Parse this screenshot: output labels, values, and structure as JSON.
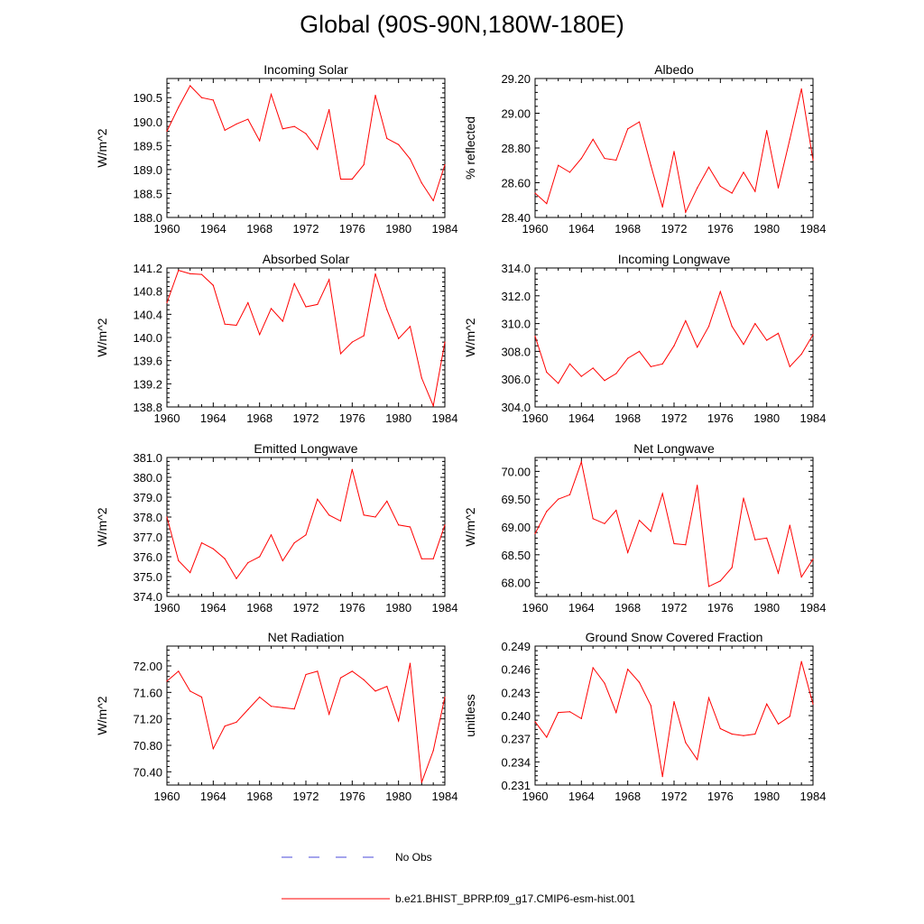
{
  "title": "Global (90S-90N,180W-180E)",
  "colors": {
    "model_line": "#ff0000",
    "obs_line": "#4a4ad8",
    "axis": "#000000"
  },
  "legend": {
    "obs_label": "No Obs",
    "model_label": "b.e21.BHIST_BPRP.f09_g17.CMIP6-esm-hist.001"
  },
  "chart_data": [
    {
      "type": "line",
      "title": "Incoming Solar",
      "xlabel": "",
      "ylabel": "W/m^2",
      "xlim": [
        1960,
        1984
      ],
      "ylim": [
        188.0,
        190.9
      ],
      "xticks": [
        "1960",
        "1964",
        "1968",
        "1972",
        "1976",
        "1980",
        "1984"
      ],
      "yticks": [
        "188.0",
        "188.5",
        "189.0",
        "189.5",
        "190.0",
        "190.5"
      ],
      "x": [
        1960,
        1961,
        1962,
        1963,
        1964,
        1965,
        1966,
        1967,
        1968,
        1969,
        1970,
        1971,
        1972,
        1973,
        1974,
        1975,
        1976,
        1977,
        1978,
        1979,
        1980,
        1981,
        1982,
        1983,
        1984
      ],
      "series": [
        {
          "name": "b.e21.BHIST_BPRP.f09_g17.CMIP6-esm-hist.001",
          "values": [
            189.8,
            190.3,
            190.75,
            190.5,
            190.45,
            189.82,
            189.95,
            190.05,
            189.6,
            190.57,
            189.85,
            189.9,
            189.75,
            189.42,
            190.25,
            188.8,
            188.8,
            189.1,
            190.55,
            189.65,
            189.52,
            189.22,
            188.72,
            188.35,
            189.1
          ]
        }
      ]
    },
    {
      "type": "line",
      "title": "Albedo",
      "xlabel": "",
      "ylabel": "% reflected",
      "xlim": [
        1960,
        1984
      ],
      "ylim": [
        28.4,
        29.2
      ],
      "xticks": [
        "1960",
        "1964",
        "1968",
        "1972",
        "1976",
        "1980",
        "1984"
      ],
      "yticks": [
        "28.40",
        "28.60",
        "28.80",
        "29.00",
        "29.20"
      ],
      "x": [
        1960,
        1961,
        1962,
        1963,
        1964,
        1965,
        1966,
        1967,
        1968,
        1969,
        1970,
        1971,
        1972,
        1973,
        1974,
        1975,
        1976,
        1977,
        1978,
        1979,
        1980,
        1981,
        1982,
        1983,
        1984
      ],
      "series": [
        {
          "name": "b.e21.BHIST_BPRP.f09_g17.CMIP6-esm-hist.001",
          "values": [
            28.54,
            28.48,
            28.7,
            28.66,
            28.74,
            28.85,
            28.74,
            28.73,
            28.91,
            28.95,
            28.7,
            28.46,
            28.78,
            28.43,
            28.57,
            28.69,
            28.58,
            28.54,
            28.66,
            28.55,
            28.9,
            28.57,
            28.85,
            29.14,
            28.73
          ]
        }
      ]
    },
    {
      "type": "line",
      "title": "Absorbed Solar",
      "xlabel": "",
      "ylabel": "W/m^2",
      "xlim": [
        1960,
        1984
      ],
      "ylim": [
        138.8,
        141.2
      ],
      "xticks": [
        "1960",
        "1964",
        "1968",
        "1972",
        "1976",
        "1980",
        "1984"
      ],
      "yticks": [
        "138.8",
        "139.2",
        "139.6",
        "140.0",
        "140.4",
        "140.8",
        "141.2"
      ],
      "x": [
        1960,
        1961,
        1962,
        1963,
        1964,
        1965,
        1966,
        1967,
        1968,
        1969,
        1970,
        1971,
        1972,
        1973,
        1974,
        1975,
        1976,
        1977,
        1978,
        1979,
        1980,
        1981,
        1982,
        1983,
        1984
      ],
      "series": [
        {
          "name": "b.e21.BHIST_BPRP.f09_g17.CMIP6-esm-hist.001",
          "values": [
            140.6,
            141.16,
            141.1,
            141.09,
            140.9,
            140.23,
            140.21,
            140.6,
            140.05,
            140.5,
            140.28,
            140.93,
            140.53,
            140.57,
            141.0,
            139.72,
            139.92,
            140.03,
            141.1,
            140.48,
            139.98,
            140.19,
            139.3,
            138.82,
            139.92
          ]
        }
      ]
    },
    {
      "type": "line",
      "title": "Incoming Longwave",
      "xlabel": "",
      "ylabel": "W/m^2",
      "xlim": [
        1960,
        1984
      ],
      "ylim": [
        304.0,
        314.0
      ],
      "xticks": [
        "1960",
        "1964",
        "1968",
        "1972",
        "1976",
        "1980",
        "1984"
      ],
      "yticks": [
        "304.0",
        "306.0",
        "308.0",
        "310.0",
        "312.0",
        "314.0"
      ],
      "x": [
        1960,
        1961,
        1962,
        1963,
        1964,
        1965,
        1966,
        1967,
        1968,
        1969,
        1970,
        1971,
        1972,
        1973,
        1974,
        1975,
        1976,
        1977,
        1978,
        1979,
        1980,
        1981,
        1982,
        1983,
        1984
      ],
      "series": [
        {
          "name": "b.e21.BHIST_BPRP.f09_g17.CMIP6-esm-hist.001",
          "values": [
            309.1,
            306.5,
            305.7,
            307.1,
            306.2,
            306.8,
            305.9,
            306.4,
            307.5,
            308.0,
            306.9,
            307.1,
            308.4,
            310.2,
            308.3,
            309.8,
            312.3,
            309.8,
            308.5,
            310.0,
            308.8,
            309.3,
            306.9,
            307.8,
            309.2
          ]
        }
      ]
    },
    {
      "type": "line",
      "title": "Emitted Longwave",
      "xlabel": "",
      "ylabel": "W/m^2",
      "xlim": [
        1960,
        1984
      ],
      "ylim": [
        374.0,
        381.0
      ],
      "xticks": [
        "1960",
        "1964",
        "1968",
        "1972",
        "1976",
        "1980",
        "1984"
      ],
      "yticks": [
        "374.0",
        "375.0",
        "376.0",
        "377.0",
        "378.0",
        "379.0",
        "380.0",
        "381.0"
      ],
      "x": [
        1960,
        1961,
        1962,
        1963,
        1964,
        1965,
        1966,
        1967,
        1968,
        1969,
        1970,
        1971,
        1972,
        1973,
        1974,
        1975,
        1976,
        1977,
        1978,
        1979,
        1980,
        1981,
        1982,
        1983,
        1984
      ],
      "series": [
        {
          "name": "b.e21.BHIST_BPRP.f09_g17.CMIP6-esm-hist.001",
          "values": [
            378.0,
            375.8,
            375.2,
            376.7,
            376.4,
            375.9,
            374.9,
            375.7,
            376.0,
            377.1,
            375.8,
            376.7,
            377.1,
            378.9,
            378.1,
            377.8,
            380.4,
            378.1,
            378.0,
            378.8,
            377.6,
            377.5,
            375.9,
            375.9,
            377.6
          ]
        }
      ]
    },
    {
      "type": "line",
      "title": "Net Longwave",
      "xlabel": "",
      "ylabel": "W/m^2",
      "xlim": [
        1960,
        1984
      ],
      "ylim": [
        67.75,
        70.25
      ],
      "xticks": [
        "1960",
        "1964",
        "1968",
        "1972",
        "1976",
        "1980",
        "1984"
      ],
      "yticks": [
        "68.00",
        "68.50",
        "69.00",
        "69.50",
        "70.00"
      ],
      "x": [
        1960,
        1961,
        1962,
        1963,
        1964,
        1965,
        1966,
        1967,
        1968,
        1969,
        1970,
        1971,
        1972,
        1973,
        1974,
        1975,
        1976,
        1977,
        1978,
        1979,
        1980,
        1981,
        1982,
        1983,
        1984
      ],
      "series": [
        {
          "name": "b.e21.BHIST_BPRP.f09_g17.CMIP6-esm-hist.001",
          "values": [
            68.88,
            69.28,
            69.5,
            69.58,
            70.17,
            69.15,
            69.06,
            69.3,
            68.54,
            69.12,
            68.92,
            69.6,
            68.7,
            68.68,
            69.75,
            67.93,
            68.03,
            68.27,
            69.52,
            68.77,
            68.8,
            68.17,
            69.03,
            68.1,
            68.42
          ]
        }
      ]
    },
    {
      "type": "line",
      "title": "Net Radiation",
      "xlabel": "",
      "ylabel": "W/m^2",
      "xlim": [
        1960,
        1984
      ],
      "ylim": [
        70.2,
        72.3
      ],
      "xticks": [
        "1960",
        "1964",
        "1968",
        "1972",
        "1976",
        "1980",
        "1984"
      ],
      "yticks": [
        "70.40",
        "70.80",
        "71.20",
        "71.60",
        "72.00"
      ],
      "x": [
        1960,
        1961,
        1962,
        1963,
        1964,
        1965,
        1966,
        1967,
        1968,
        1969,
        1970,
        1971,
        1972,
        1973,
        1974,
        1975,
        1976,
        1977,
        1978,
        1979,
        1980,
        1981,
        1982,
        1983,
        1984
      ],
      "series": [
        {
          "name": "b.e21.BHIST_BPRP.f09_g17.CMIP6-esm-hist.001",
          "values": [
            71.77,
            71.92,
            71.62,
            71.53,
            70.75,
            71.09,
            71.15,
            71.34,
            71.53,
            71.39,
            71.37,
            71.35,
            71.87,
            71.92,
            71.27,
            71.82,
            71.92,
            71.79,
            71.62,
            71.69,
            71.17,
            72.04,
            70.24,
            70.72,
            71.53
          ]
        }
      ]
    },
    {
      "type": "line",
      "title": "Ground Snow Covered Fraction",
      "xlabel": "",
      "ylabel": "unitless",
      "xlim": [
        1960,
        1984
      ],
      "ylim": [
        0.231,
        0.249
      ],
      "xticks": [
        "1960",
        "1964",
        "1968",
        "1972",
        "1976",
        "1980",
        "1984"
      ],
      "yticks": [
        "0.231",
        "0.234",
        "0.237",
        "0.240",
        "0.243",
        "0.246",
        "0.249"
      ],
      "x": [
        1960,
        1961,
        1962,
        1963,
        1964,
        1965,
        1966,
        1967,
        1968,
        1969,
        1970,
        1971,
        1972,
        1973,
        1974,
        1975,
        1976,
        1977,
        1978,
        1979,
        1980,
        1981,
        1982,
        1983,
        1984
      ],
      "series": [
        {
          "name": "b.e21.BHIST_BPRP.f09_g17.CMIP6-esm-hist.001",
          "values": [
            0.2392,
            0.2372,
            0.2404,
            0.2405,
            0.2396,
            0.2462,
            0.2442,
            0.2404,
            0.246,
            0.2443,
            0.2413,
            0.2321,
            0.2418,
            0.2365,
            0.2343,
            0.2423,
            0.2383,
            0.2376,
            0.2374,
            0.2376,
            0.2415,
            0.2389,
            0.2399,
            0.247,
            0.2415
          ]
        }
      ]
    }
  ]
}
